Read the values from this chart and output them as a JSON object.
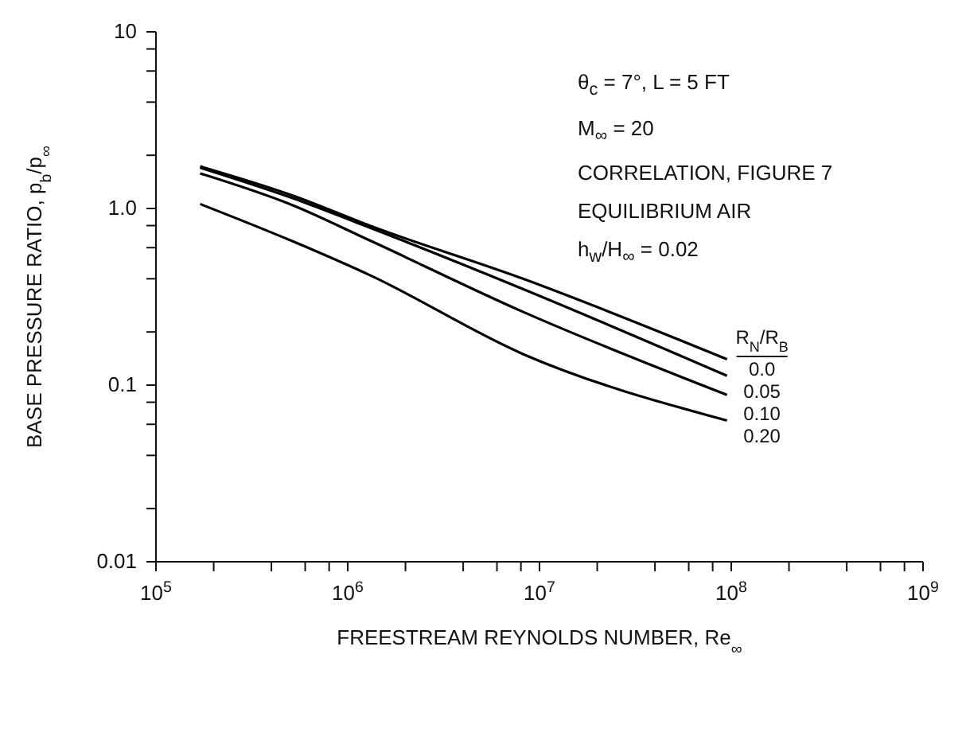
{
  "chart_data": {
    "type": "line",
    "xlabel": "FREESTREAM REYNOLDS NUMBER, Re$_{∞}$",
    "ylabel": "BASE PRESSURE RATIO, p$_{b}$/p$_{∞}$",
    "legend_title": "R$_{N}$/R$_{B}$",
    "annotations": [
      "θ$_{c}$ = 7°, L = 5 FT",
      "M$_{∞}$ = 20",
      "CORRELATION, FIGURE 7",
      "EQUILIBRIUM AIR",
      "h$_{w}$/H$_{∞}$ = 0.02"
    ],
    "x": [
      170000,
      520000,
      1300000,
      8200000,
      95000000
    ],
    "series": [
      {
        "name": "0.0",
        "color": "#000000",
        "values": [
          1.73,
          1.18,
          0.8,
          0.4,
          0.14
        ]
      },
      {
        "name": "0.05",
        "color": "#000000",
        "values": [
          1.7,
          1.14,
          0.78,
          0.35,
          0.113
        ]
      },
      {
        "name": "0.10",
        "color": "#000000",
        "values": [
          1.58,
          1.04,
          0.66,
          0.26,
          0.088
        ]
      },
      {
        "name": "0.20",
        "color": "#000000",
        "values": [
          1.06,
          0.65,
          0.42,
          0.15,
          0.063
        ]
      }
    ],
    "log": "xy",
    "grid": false,
    "marker": "none",
    "line_style": "solid",
    "xlim": [
      100000,
      1000000000
    ],
    "xticks": [
      {
        "value": 100000,
        "label": "10$^{5}$"
      },
      {
        "value": 200000,
        "label": null
      },
      {
        "value": 400000,
        "label": null
      },
      {
        "value": 600000,
        "label": null
      },
      {
        "value": 800000,
        "label": null
      },
      {
        "value": 1000000,
        "label": "10$^{6}$"
      },
      {
        "value": 2000000,
        "label": null
      },
      {
        "value": 4000000,
        "label": null
      },
      {
        "value": 6000000,
        "label": null
      },
      {
        "value": 8000000,
        "label": null
      },
      {
        "value": 10000000,
        "label": "10$^{7}$"
      },
      {
        "value": 20000000,
        "label": null
      },
      {
        "value": 40000000,
        "label": null
      },
      {
        "value": 60000000,
        "label": null
      },
      {
        "value": 80000000,
        "label": null
      },
      {
        "value": 100000000,
        "label": "10$^{8}$"
      },
      {
        "value": 200000000,
        "label": null
      },
      {
        "value": 400000000,
        "label": null
      },
      {
        "value": 600000000,
        "label": null
      },
      {
        "value": 800000000,
        "label": null
      },
      {
        "value": 1000000000,
        "label": "10$^{9}$"
      }
    ],
    "ylim": [
      0.01,
      10
    ],
    "yticks": [
      0.01,
      {
        "value": 0.02,
        "label": null
      },
      {
        "value": 0.04,
        "label": null
      },
      {
        "value": 0.06,
        "label": null
      },
      {
        "value": 0.08,
        "label": null
      },
      0.1,
      {
        "value": 0.2,
        "label": null
      },
      {
        "value": 0.4,
        "label": null
      },
      {
        "value": 0.6,
        "label": null
      },
      {
        "value": 0.8,
        "label": null
      },
      {
        "value": 1,
        "label": "1.0"
      },
      {
        "value": 2,
        "label": null
      },
      {
        "value": 4,
        "label": null
      },
      {
        "value": 6,
        "label": null
      },
      {
        "value": 8,
        "label": null
      },
      10
    ]
  }
}
